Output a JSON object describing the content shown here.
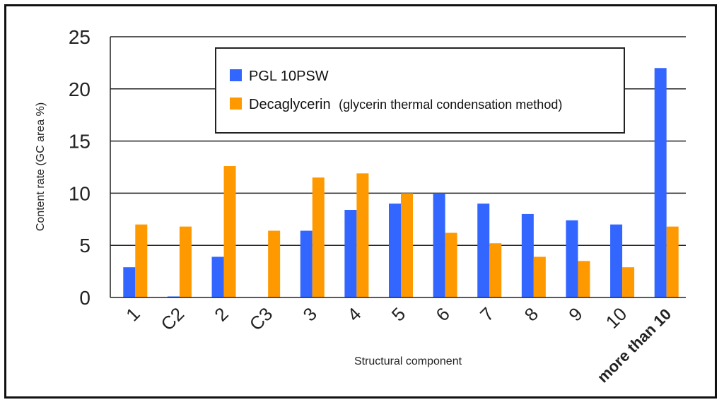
{
  "chart_data": {
    "type": "bar",
    "categories": [
      "1",
      "C2",
      "2",
      "C3",
      "3",
      "4",
      "5",
      "6",
      "7",
      "8",
      "9",
      "10",
      "more than 10"
    ],
    "series": [
      {
        "name": "PGL 10PSW",
        "values": [
          2.9,
          0.1,
          3.9,
          0,
          6.4,
          8.4,
          9.0,
          10.0,
          9.0,
          8.0,
          7.4,
          7.0,
          22.0
        ],
        "color": "#3366ff"
      },
      {
        "name": "Decaglycerin",
        "name_suffix": "(glycerin thermal condensation method)",
        "values": [
          7.0,
          6.8,
          12.6,
          6.4,
          11.5,
          11.9,
          10.0,
          6.2,
          5.2,
          3.9,
          3.5,
          2.9,
          6.8
        ],
        "color": "#ff9900"
      }
    ],
    "xlabel": "Structural component",
    "ylabel": "Content rate (GC area %)",
    "ylim": [
      0,
      25
    ],
    "yticks": [
      0,
      5,
      10,
      15,
      20,
      25
    ],
    "grid": true,
    "legend_position": "top-center"
  }
}
